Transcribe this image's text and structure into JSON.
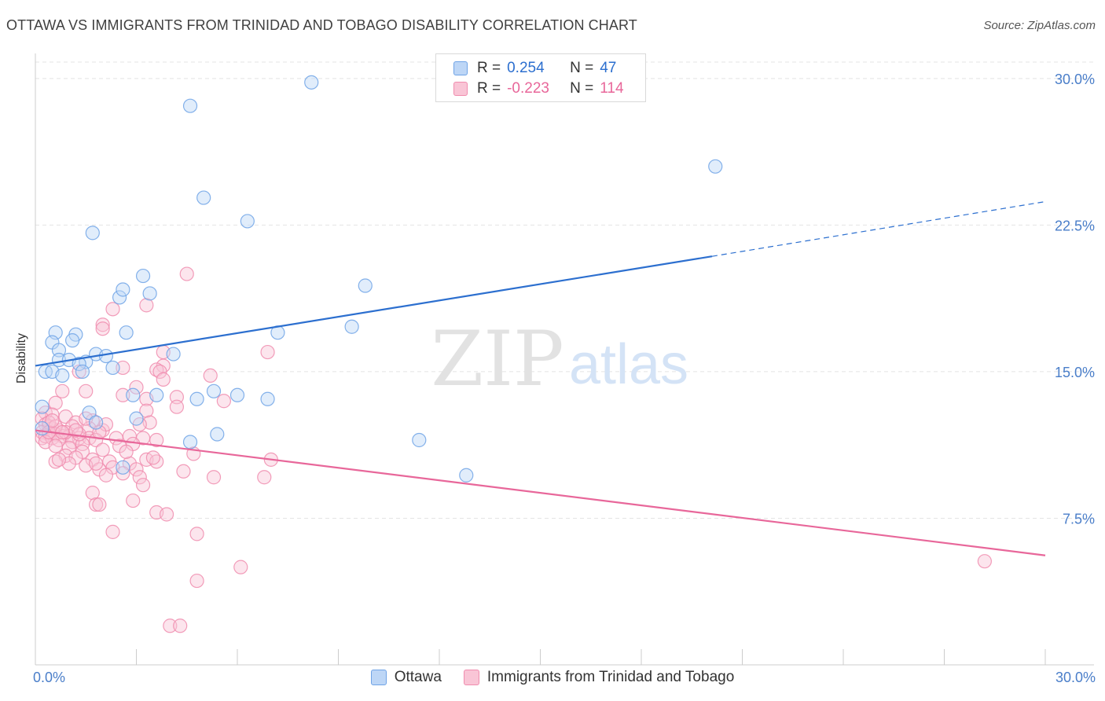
{
  "title": "OTTAWA VS IMMIGRANTS FROM TRINIDAD AND TOBAGO DISABILITY CORRELATION CHART",
  "source": "Source: ZipAtlas.com",
  "watermark": {
    "zip": "ZIP",
    "atlas": "atlas"
  },
  "legend_stats": [
    {
      "r_label": "R =",
      "r_value": "0.254",
      "n_label": "N =",
      "n_value": "47"
    },
    {
      "r_label": "R =",
      "r_value": "-0.223",
      "n_label": "N =",
      "n_value": "114"
    }
  ],
  "colors": {
    "blue": "#6fa3e6",
    "blue_fill": "#bdd6f6",
    "blue_line": "#2c6fcf",
    "pink": "#f08cae",
    "pink_fill": "#f9c5d6",
    "pink_line": "#e8679a",
    "axis_text": "#4a7ec9",
    "grid": "#e4e4e4"
  },
  "chart_data": {
    "type": "scatter",
    "title": "OTTAWA VS IMMIGRANTS FROM TRINIDAD AND TOBAGO DISABILITY CORRELATION CHART",
    "xlabel": "",
    "ylabel": "Disability",
    "xlim": [
      0,
      30
    ],
    "ylim": [
      0,
      31
    ],
    "x_tick_labels": [
      "0.0%",
      "30.0%"
    ],
    "y_ticks": [
      7.5,
      15.0,
      22.5,
      30.0
    ],
    "y_tick_labels": [
      "7.5%",
      "15.0%",
      "22.5%",
      "30.0%"
    ],
    "grid": true,
    "legend_position": "bottom",
    "series": [
      {
        "name": "Ottawa",
        "color": "blue",
        "R": 0.254,
        "N": 47,
        "trend": {
          "x0": 0,
          "y0": 15.3,
          "x1": 20.1,
          "y1": 20.9,
          "dashed_to_x": 30,
          "dashed_to_y": 23.7
        },
        "points": [
          [
            8.2,
            29.8
          ],
          [
            4.6,
            28.6
          ],
          [
            20.2,
            25.5
          ],
          [
            5.0,
            23.9
          ],
          [
            6.3,
            22.7
          ],
          [
            1.7,
            22.1
          ],
          [
            2.5,
            18.8
          ],
          [
            3.2,
            19.9
          ],
          [
            3.4,
            19.0
          ],
          [
            2.6,
            19.2
          ],
          [
            9.8,
            19.4
          ],
          [
            9.4,
            17.3
          ],
          [
            0.6,
            17.0
          ],
          [
            1.2,
            16.9
          ],
          [
            2.7,
            17.0
          ],
          [
            7.2,
            17.0
          ],
          [
            0.5,
            16.5
          ],
          [
            1.1,
            16.6
          ],
          [
            0.7,
            16.1
          ],
          [
            1.8,
            15.9
          ],
          [
            2.1,
            15.8
          ],
          [
            4.1,
            15.9
          ],
          [
            0.7,
            15.6
          ],
          [
            1.0,
            15.6
          ],
          [
            1.5,
            15.5
          ],
          [
            1.3,
            15.4
          ],
          [
            2.3,
            15.2
          ],
          [
            0.3,
            15.0
          ],
          [
            0.5,
            15.0
          ],
          [
            0.8,
            14.8
          ],
          [
            1.4,
            15.0
          ],
          [
            2.9,
            13.8
          ],
          [
            3.6,
            13.8
          ],
          [
            4.8,
            13.6
          ],
          [
            5.3,
            14.0
          ],
          [
            6.0,
            13.8
          ],
          [
            6.9,
            13.6
          ],
          [
            0.2,
            13.2
          ],
          [
            1.6,
            12.9
          ],
          [
            1.8,
            12.4
          ],
          [
            3.0,
            12.6
          ],
          [
            0.2,
            12.1
          ],
          [
            5.4,
            11.8
          ],
          [
            4.6,
            11.4
          ],
          [
            11.4,
            11.5
          ],
          [
            2.6,
            10.1
          ],
          [
            12.8,
            9.7
          ]
        ]
      },
      {
        "name": "Immigrants from Trinidad and Tobago",
        "color": "pink",
        "R": -0.223,
        "N": 114,
        "trend": {
          "x0": 0,
          "y0": 12.0,
          "x1": 30,
          "y1": 5.6
        },
        "points": [
          [
            4.5,
            20.0
          ],
          [
            2.3,
            18.2
          ],
          [
            3.3,
            18.4
          ],
          [
            2.0,
            17.4
          ],
          [
            2.0,
            17.2
          ],
          [
            3.8,
            16.0
          ],
          [
            6.9,
            16.0
          ],
          [
            3.8,
            15.3
          ],
          [
            3.6,
            15.1
          ],
          [
            2.6,
            15.2
          ],
          [
            3.7,
            15.0
          ],
          [
            1.3,
            15.0
          ],
          [
            5.2,
            14.8
          ],
          [
            3.8,
            14.6
          ],
          [
            0.8,
            14.0
          ],
          [
            1.5,
            14.0
          ],
          [
            3.0,
            14.2
          ],
          [
            2.6,
            13.8
          ],
          [
            4.2,
            13.7
          ],
          [
            3.3,
            13.6
          ],
          [
            5.6,
            13.5
          ],
          [
            0.6,
            13.4
          ],
          [
            4.2,
            13.2
          ],
          [
            3.3,
            13.0
          ],
          [
            0.3,
            12.9
          ],
          [
            0.5,
            12.8
          ],
          [
            0.2,
            12.6
          ],
          [
            0.9,
            12.7
          ],
          [
            1.2,
            12.4
          ],
          [
            1.7,
            12.5
          ],
          [
            3.4,
            12.4
          ],
          [
            3.1,
            12.3
          ],
          [
            0.3,
            12.3
          ],
          [
            0.4,
            12.2
          ],
          [
            0.5,
            12.1
          ],
          [
            0.7,
            12.0
          ],
          [
            1.1,
            12.2
          ],
          [
            1.6,
            12.1
          ],
          [
            2.0,
            12.0
          ],
          [
            0.2,
            11.9
          ],
          [
            0.4,
            11.8
          ],
          [
            0.6,
            11.8
          ],
          [
            0.8,
            11.7
          ],
          [
            1.0,
            11.7
          ],
          [
            1.3,
            11.6
          ],
          [
            1.6,
            11.6
          ],
          [
            0.2,
            11.6
          ],
          [
            0.3,
            11.7
          ],
          [
            0.5,
            11.6
          ],
          [
            0.7,
            11.5
          ],
          [
            1.1,
            11.4
          ],
          [
            1.4,
            11.3
          ],
          [
            1.8,
            11.5
          ],
          [
            2.4,
            11.6
          ],
          [
            2.8,
            11.7
          ],
          [
            3.2,
            11.6
          ],
          [
            3.6,
            11.5
          ],
          [
            0.3,
            11.4
          ],
          [
            0.6,
            11.2
          ],
          [
            1.0,
            11.1
          ],
          [
            1.4,
            10.9
          ],
          [
            2.0,
            11.0
          ],
          [
            2.5,
            11.2
          ],
          [
            0.9,
            10.7
          ],
          [
            1.2,
            10.6
          ],
          [
            1.7,
            10.5
          ],
          [
            2.2,
            10.4
          ],
          [
            2.8,
            10.3
          ],
          [
            3.3,
            10.5
          ],
          [
            0.6,
            10.4
          ],
          [
            1.0,
            10.3
          ],
          [
            1.5,
            10.2
          ],
          [
            1.9,
            10.0
          ],
          [
            2.3,
            10.1
          ],
          [
            3.0,
            10.0
          ],
          [
            4.7,
            10.8
          ],
          [
            7.0,
            10.5
          ],
          [
            3.6,
            10.4
          ],
          [
            1.8,
            10.3
          ],
          [
            2.6,
            9.8
          ],
          [
            3.1,
            9.6
          ],
          [
            4.4,
            9.9
          ],
          [
            5.3,
            9.6
          ],
          [
            6.8,
            9.6
          ],
          [
            3.2,
            9.2
          ],
          [
            2.1,
            9.7
          ],
          [
            1.7,
            8.8
          ],
          [
            2.9,
            8.4
          ],
          [
            1.8,
            8.2
          ],
          [
            1.9,
            8.2
          ],
          [
            3.6,
            7.8
          ],
          [
            3.9,
            7.7
          ],
          [
            2.3,
            6.8
          ],
          [
            4.8,
            6.7
          ],
          [
            6.1,
            5.0
          ],
          [
            4.8,
            4.3
          ],
          [
            4.0,
            2.0
          ],
          [
            4.3,
            2.0
          ],
          [
            28.2,
            5.3
          ],
          [
            0.7,
            10.5
          ],
          [
            1.5,
            12.6
          ],
          [
            2.1,
            12.3
          ],
          [
            0.4,
            12.4
          ],
          [
            0.9,
            11.9
          ],
          [
            1.3,
            11.8
          ],
          [
            2.9,
            11.3
          ],
          [
            3.5,
            10.6
          ],
          [
            0.4,
            11.9
          ],
          [
            0.6,
            12.2
          ],
          [
            1.2,
            12.0
          ],
          [
            1.9,
            11.9
          ],
          [
            0.5,
            12.5
          ],
          [
            0.8,
            11.9
          ],
          [
            2.7,
            10.9
          ]
        ]
      }
    ]
  },
  "bottom_legend": [
    {
      "label": "Ottawa",
      "color": "blue"
    },
    {
      "label": "Immigrants from Trinidad and Tobago",
      "color": "pink"
    }
  ]
}
